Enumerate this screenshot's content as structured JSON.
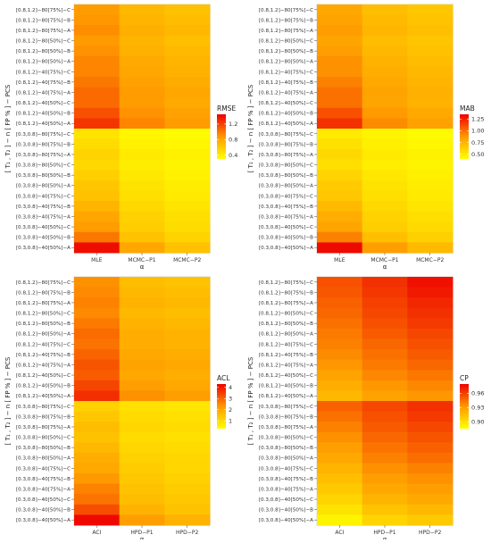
{
  "chart_data": [
    {
      "type": "heatmap",
      "legend_title": "RMSE",
      "xlabel": "α",
      "ylabel": "[ T₁ , T₂ ] − n [ FP % ] − PCS",
      "x_categories": [
        "MLE",
        "MCMC−P1",
        "MCMC−P2"
      ],
      "y_categories": [
        "[0.8,1.2]−80[75%]−C",
        "[0.8,1.2]−80[75%]−B",
        "[0.8,1.2]−80[75%]−A",
        "[0.8,1.2]−80[50%]−C",
        "[0.8,1.2]−80[50%]−B",
        "[0.8,1.2]−80[50%]−A",
        "[0.8,1.2]−40[75%]−C",
        "[0.8,1.2]−40[75%]−B",
        "[0.8,1.2]−40[75%]−A",
        "[0.8,1.2]−40[50%]−C",
        "[0.8,1.2]−40[50%]−B",
        "[0.8,1.2]−40[50%]−A",
        "[0.3,0.8]−80[75%]−C",
        "[0.3,0.8]−80[75%]−B",
        "[0.3,0.8]−80[75%]−A",
        "[0.3,0.8]−80[50%]−C",
        "[0.3,0.8]−80[50%]−B",
        "[0.3,0.8]−80[50%]−A",
        "[0.3,0.8]−40[75%]−C",
        "[0.3,0.8]−40[75%]−B",
        "[0.3,0.8]−40[75%]−A",
        "[0.3,0.8]−40[50%]−C",
        "[0.3,0.8]−40[50%]−B",
        "[0.3,0.8]−40[50%]−A"
      ],
      "legend_range": [
        0.3,
        1.45
      ],
      "legend_ticks": [
        0.4,
        0.8,
        1.2
      ],
      "values": [
        [
          0.85,
          0.7,
          0.65
        ],
        [
          0.88,
          0.72,
          0.68
        ],
        [
          0.92,
          0.75,
          0.7
        ],
        [
          0.87,
          0.72,
          0.66
        ],
        [
          0.9,
          0.74,
          0.69
        ],
        [
          0.95,
          0.78,
          0.72
        ],
        [
          0.95,
          0.8,
          0.74
        ],
        [
          1.0,
          0.83,
          0.77
        ],
        [
          1.05,
          0.86,
          0.8
        ],
        [
          1.05,
          0.85,
          0.78
        ],
        [
          1.15,
          0.9,
          0.83
        ],
        [
          1.25,
          0.95,
          0.86
        ],
        [
          0.45,
          0.35,
          0.32
        ],
        [
          0.5,
          0.38,
          0.35
        ],
        [
          0.55,
          0.42,
          0.38
        ],
        [
          0.52,
          0.4,
          0.36
        ],
        [
          0.57,
          0.43,
          0.38
        ],
        [
          0.62,
          0.46,
          0.4
        ],
        [
          0.65,
          0.48,
          0.42
        ],
        [
          0.72,
          0.52,
          0.45
        ],
        [
          0.8,
          0.56,
          0.48
        ],
        [
          0.85,
          0.58,
          0.5
        ],
        [
          1.0,
          0.65,
          0.55
        ],
        [
          1.4,
          0.8,
          0.65
        ]
      ]
    },
    {
      "type": "heatmap",
      "legend_title": "MAB",
      "xlabel": "α",
      "ylabel": "[ T₁ , T₂ ] − n [ FP % ] − PCS",
      "x_categories": [
        "MLE",
        "MCMC−P1",
        "MCMC−P2"
      ],
      "y_categories": [
        "[0.8,1.2]−80[75%]−C",
        "[0.8,1.2]−80[75%]−B",
        "[0.8,1.2]−80[75%]−A",
        "[0.8,1.2]−80[50%]−C",
        "[0.8,1.2]−80[50%]−B",
        "[0.8,1.2]−80[50%]−A",
        "[0.8,1.2]−40[75%]−C",
        "[0.8,1.2]−40[75%]−B",
        "[0.8,1.2]−40[75%]−A",
        "[0.8,1.2]−40[50%]−C",
        "[0.8,1.2]−40[50%]−B",
        "[0.8,1.2]−40[50%]−A",
        "[0.3,0.8]−80[75%]−C",
        "[0.3,0.8]−80[75%]−B",
        "[0.3,0.8]−80[75%]−A",
        "[0.3,0.8]−80[50%]−C",
        "[0.3,0.8]−80[50%]−B",
        "[0.3,0.8]−80[50%]−A",
        "[0.3,0.8]−40[75%]−C",
        "[0.3,0.8]−40[75%]−B",
        "[0.3,0.8]−40[75%]−A",
        "[0.3,0.8]−40[50%]−C",
        "[0.3,0.8]−40[50%]−B",
        "[0.3,0.8]−40[50%]−A"
      ],
      "legend_range": [
        0.4,
        1.35
      ],
      "legend_ticks": [
        0.5,
        0.75,
        1.0,
        1.25
      ],
      "values": [
        [
          0.8,
          0.7,
          0.66
        ],
        [
          0.83,
          0.72,
          0.68
        ],
        [
          0.86,
          0.74,
          0.7
        ],
        [
          0.82,
          0.71,
          0.67
        ],
        [
          0.85,
          0.73,
          0.69
        ],
        [
          0.9,
          0.76,
          0.71
        ],
        [
          0.9,
          0.78,
          0.73
        ],
        [
          0.95,
          0.8,
          0.75
        ],
        [
          1.0,
          0.83,
          0.77
        ],
        [
          1.0,
          0.82,
          0.76
        ],
        [
          1.1,
          0.87,
          0.8
        ],
        [
          1.2,
          0.92,
          0.84
        ],
        [
          0.5,
          0.45,
          0.42
        ],
        [
          0.54,
          0.47,
          0.44
        ],
        [
          0.58,
          0.5,
          0.46
        ],
        [
          0.55,
          0.48,
          0.45
        ],
        [
          0.6,
          0.51,
          0.47
        ],
        [
          0.64,
          0.53,
          0.49
        ],
        [
          0.66,
          0.55,
          0.5
        ],
        [
          0.72,
          0.58,
          0.52
        ],
        [
          0.78,
          0.61,
          0.55
        ],
        [
          0.82,
          0.63,
          0.57
        ],
        [
          0.95,
          0.7,
          0.62
        ],
        [
          1.32,
          0.85,
          0.72
        ]
      ]
    },
    {
      "type": "heatmap",
      "legend_title": "ACL",
      "xlabel": "α",
      "ylabel": "[ T₁ , T₂ ] − n [ FP % ] − PCS",
      "x_categories": [
        "ACI",
        "HPD−P1",
        "HPD−P2"
      ],
      "y_categories": [
        "[0.8,1.2]−80[75%]−C",
        "[0.8,1.2]−80[75%]−B",
        "[0.8,1.2]−80[75%]−A",
        "[0.8,1.2]−80[50%]−C",
        "[0.8,1.2]−80[50%]−B",
        "[0.8,1.2]−80[50%]−A",
        "[0.8,1.2]−40[75%]−C",
        "[0.8,1.2]−40[75%]−B",
        "[0.8,1.2]−40[75%]−A",
        "[0.8,1.2]−40[50%]−C",
        "[0.8,1.2]−40[50%]−B",
        "[0.8,1.2]−40[50%]−A",
        "[0.3,0.8]−80[75%]−C",
        "[0.3,0.8]−80[75%]−B",
        "[0.3,0.8]−80[75%]−A",
        "[0.3,0.8]−80[50%]−C",
        "[0.3,0.8]−80[50%]−B",
        "[0.3,0.8]−80[50%]−A",
        "[0.3,0.8]−40[75%]−C",
        "[0.3,0.8]−40[75%]−B",
        "[0.3,0.8]−40[75%]−A",
        "[0.3,0.8]−40[50%]−C",
        "[0.3,0.8]−40[50%]−B",
        "[0.3,0.8]−40[50%]−A"
      ],
      "legend_range": [
        0.3,
        4.3
      ],
      "legend_ticks": [
        1,
        2,
        3,
        4
      ],
      "values": [
        [
          2.4,
          1.6,
          1.5
        ],
        [
          2.5,
          1.7,
          1.6
        ],
        [
          2.6,
          1.8,
          1.7
        ],
        [
          2.5,
          1.7,
          1.6
        ],
        [
          2.7,
          1.8,
          1.7
        ],
        [
          2.9,
          1.9,
          1.8
        ],
        [
          2.8,
          1.9,
          1.8
        ],
        [
          3.0,
          2.0,
          1.9
        ],
        [
          3.2,
          2.1,
          2.0
        ],
        [
          3.1,
          2.0,
          1.9
        ],
        [
          3.4,
          2.2,
          2.0
        ],
        [
          3.7,
          2.4,
          2.2
        ],
        [
          1.2,
          0.9,
          0.8
        ],
        [
          1.4,
          1.0,
          0.9
        ],
        [
          1.6,
          1.1,
          1.0
        ],
        [
          1.5,
          1.0,
          0.9
        ],
        [
          1.7,
          1.1,
          1.0
        ],
        [
          1.9,
          1.2,
          1.1
        ],
        [
          2.0,
          1.3,
          1.1
        ],
        [
          2.3,
          1.4,
          1.2
        ],
        [
          2.6,
          1.5,
          1.3
        ],
        [
          2.8,
          1.6,
          1.4
        ],
        [
          3.3,
          1.8,
          1.5
        ],
        [
          4.2,
          2.2,
          1.8
        ]
      ]
    },
    {
      "type": "heatmap",
      "legend_title": "CP",
      "xlabel": "α",
      "ylabel": "[ T₁ , T₂ ] − n [ FP % ] − PCS",
      "x_categories": [
        "ACI",
        "HPD−P1",
        "HPD−P2"
      ],
      "y_categories": [
        "[0.8,1.2]−80[75%]−C",
        "[0.8,1.2]−80[75%]−B",
        "[0.8,1.2]−80[75%]−A",
        "[0.8,1.2]−80[50%]−C",
        "[0.8,1.2]−80[50%]−B",
        "[0.8,1.2]−80[50%]−A",
        "[0.8,1.2]−40[75%]−C",
        "[0.8,1.2]−40[75%]−B",
        "[0.8,1.2]−40[75%]−A",
        "[0.8,1.2]−40[50%]−C",
        "[0.8,1.2]−40[50%]−B",
        "[0.8,1.2]−40[50%]−A",
        "[0.3,0.8]−80[75%]−C",
        "[0.3,0.8]−80[75%]−B",
        "[0.3,0.8]−80[75%]−A",
        "[0.3,0.8]−80[50%]−C",
        "[0.3,0.8]−80[50%]−B",
        "[0.3,0.8]−80[50%]−A",
        "[0.3,0.8]−40[75%]−C",
        "[0.3,0.8]−40[75%]−B",
        "[0.3,0.8]−40[75%]−A",
        "[0.3,0.8]−40[50%]−C",
        "[0.3,0.8]−40[50%]−B",
        "[0.3,0.8]−40[50%]−A"
      ],
      "legend_range": [
        0.885,
        0.98
      ],
      "legend_ticks": [
        0.9,
        0.93,
        0.96
      ],
      "values": [
        [
          0.955,
          0.965,
          0.975
        ],
        [
          0.953,
          0.963,
          0.972
        ],
        [
          0.95,
          0.96,
          0.968
        ],
        [
          0.948,
          0.958,
          0.965
        ],
        [
          0.945,
          0.955,
          0.962
        ],
        [
          0.942,
          0.952,
          0.958
        ],
        [
          0.94,
          0.948,
          0.955
        ],
        [
          0.937,
          0.945,
          0.952
        ],
        [
          0.933,
          0.942,
          0.948
        ],
        [
          0.928,
          0.938,
          0.943
        ],
        [
          0.923,
          0.933,
          0.938
        ],
        [
          0.918,
          0.928,
          0.933
        ],
        [
          0.95,
          0.958,
          0.965
        ],
        [
          0.945,
          0.955,
          0.962
        ],
        [
          0.94,
          0.952,
          0.958
        ],
        [
          0.935,
          0.948,
          0.954
        ],
        [
          0.93,
          0.944,
          0.95
        ],
        [
          0.925,
          0.94,
          0.946
        ],
        [
          0.92,
          0.935,
          0.94
        ],
        [
          0.915,
          0.93,
          0.935
        ],
        [
          0.91,
          0.925,
          0.93
        ],
        [
          0.905,
          0.92,
          0.925
        ],
        [
          0.898,
          0.913,
          0.918
        ],
        [
          0.89,
          0.905,
          0.91
        ]
      ]
    }
  ]
}
